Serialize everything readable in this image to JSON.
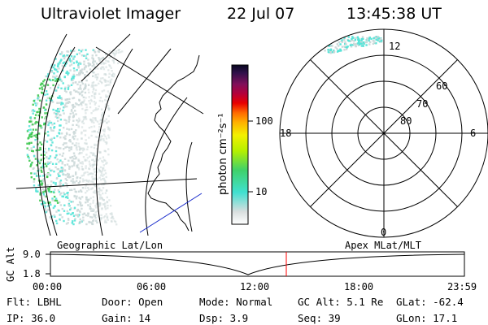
{
  "header": {
    "title": "Ultraviolet Imager",
    "date": "22 Jul 07",
    "time": "13:45:38 UT"
  },
  "colorbar": {
    "label": "photon cm⁻²s⁻¹",
    "ticks": [
      "100",
      "10"
    ],
    "scale": "log"
  },
  "polar_plot": {
    "mlt_labels": {
      "top": "12",
      "left": "18",
      "right": "6",
      "bottom": "0"
    },
    "lat_labels": [
      "60",
      "70",
      "80"
    ]
  },
  "altitude_strip": {
    "y_axis_label": "GC Alt",
    "y_ticks": [
      "9.0",
      "1.8"
    ],
    "left_caption": "Geographic Lat/Lon",
    "right_caption": "Apex MLat/MLT",
    "x_ticks": [
      "00:00",
      "06:00",
      "12:00",
      "18:00",
      "23:59"
    ]
  },
  "status": {
    "filter": "Flt: LBHL",
    "ip": "IP: 36.0",
    "door": "Door: Open",
    "gain": "Gain: 14",
    "mode": "Mode: Normal",
    "dsp": "Dsp:   3.9",
    "gc_alt": "GC Alt: 5.1 Re",
    "seq": "Seq: 39",
    "glat": "GLat: -62.4",
    "glon": "GLon:  17.1"
  },
  "colors": {
    "aurora_low": "#ccd9d9",
    "aurora_mid": "#58e4d8",
    "aurora_high": "#3ec850",
    "time_marker": "#ff0000",
    "track": "#1a2ccc"
  }
}
